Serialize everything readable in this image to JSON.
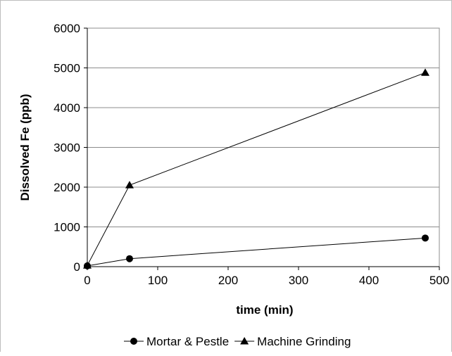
{
  "chart_data": {
    "type": "line",
    "title": "",
    "xlabel": "time (min)",
    "ylabel": "Dissolved Fe (ppb)",
    "xlim": [
      0,
      500
    ],
    "ylim": [
      0,
      6000
    ],
    "xticks": [
      0,
      100,
      200,
      300,
      400,
      500
    ],
    "yticks": [
      0,
      1000,
      2000,
      3000,
      4000,
      5000,
      6000
    ],
    "grid": "horizontal",
    "legend_position": "bottom",
    "series": [
      {
        "name": "Mortar & Pestle",
        "marker": "circle",
        "x": [
          0,
          60,
          480
        ],
        "y": [
          20,
          200,
          720
        ]
      },
      {
        "name": "Machine Grinding",
        "marker": "triangle",
        "x": [
          0,
          60,
          480
        ],
        "y": [
          30,
          2050,
          4880
        ]
      }
    ],
    "colors": {
      "line": "#000000",
      "grid": "#8c8c8c",
      "axis": "#000000"
    }
  }
}
